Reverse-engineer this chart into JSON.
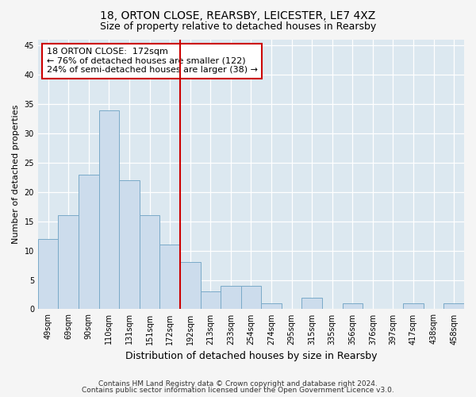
{
  "title1": "18, ORTON CLOSE, REARSBY, LEICESTER, LE7 4XZ",
  "title2": "Size of property relative to detached houses in Rearsby",
  "xlabel": "Distribution of detached houses by size in Rearsby",
  "ylabel": "Number of detached properties",
  "footnote1": "Contains HM Land Registry data © Crown copyright and database right 2024.",
  "footnote2": "Contains public sector information licensed under the Open Government Licence v3.0.",
  "bar_labels": [
    "49sqm",
    "69sqm",
    "90sqm",
    "110sqm",
    "131sqm",
    "151sqm",
    "172sqm",
    "192sqm",
    "213sqm",
    "233sqm",
    "254sqm",
    "274sqm",
    "295sqm",
    "315sqm",
    "335sqm",
    "356sqm",
    "376sqm",
    "397sqm",
    "417sqm",
    "438sqm",
    "458sqm"
  ],
  "bar_values": [
    12,
    16,
    23,
    34,
    22,
    16,
    11,
    8,
    3,
    4,
    4,
    1,
    0,
    2,
    0,
    1,
    0,
    0,
    1,
    0,
    1
  ],
  "bar_color": "#ccdcec",
  "bar_edgecolor": "#7aaac8",
  "vline_x": 6,
  "vline_color": "#cc0000",
  "annotation_title": "18 ORTON CLOSE:  172sqm",
  "annotation_line1": "← 76% of detached houses are smaller (122)",
  "annotation_line2": "24% of semi-detached houses are larger (38) →",
  "annotation_box_edgecolor": "#cc0000",
  "ylim": [
    0,
    46
  ],
  "yticks": [
    0,
    5,
    10,
    15,
    20,
    25,
    30,
    35,
    40,
    45
  ],
  "fig_facecolor": "#f5f5f5",
  "ax_facecolor": "#dce8f0",
  "grid_color": "#ffffff",
  "title1_fontsize": 10,
  "title2_fontsize": 9,
  "xlabel_fontsize": 9,
  "ylabel_fontsize": 8,
  "tick_fontsize": 7,
  "footnote_fontsize": 6.5
}
